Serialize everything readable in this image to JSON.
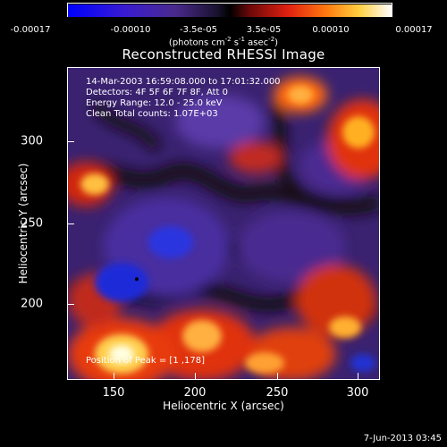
{
  "colorbar": {
    "ticks": [
      "-0.00017",
      "-0.00010",
      "-3.5e-05",
      "3.5e-05",
      "0.00010",
      "0.00017"
    ],
    "units_main": "(photons cm",
    "units_exp1": "-2",
    "units_mid": " s",
    "units_exp2": "-1",
    "units_end": " asec",
    "units_exp3": "-2",
    "units_close": ")"
  },
  "title": "Reconstructed RHESSI Image",
  "info": {
    "time": "14-Mar-2003 16:59:08.000 to 17:01:32.000",
    "detectors": "Detectors: 4F 5F 6F 7F 8F, Att 0",
    "energy": "Energy Range: 12.0 - 25.0 keV",
    "clean": "Clean    Total counts: 1.07E+03"
  },
  "peak": "Position of Peak = [",
  "peak_value": "1  ,178]",
  "timestamp": "7-Jun-2013 03:45",
  "chart_data": {
    "type": "heatmap",
    "title": "Reconstructed RHESSI Image",
    "xlabel": "Heliocentric X (arcsec)",
    "ylabel": "Heliocentric Y (arcsec)",
    "xlim": [
      120,
      310
    ],
    "ylim": [
      150,
      340
    ],
    "xticks": [
      150,
      200,
      250,
      300
    ],
    "yticks": [
      200,
      250,
      300
    ],
    "xtick_labels": [
      "150",
      "200",
      "250",
      "300"
    ],
    "ytick_labels": [
      "200",
      "250",
      "300"
    ],
    "colorbar_range": [
      -0.00017,
      0.00017
    ],
    "colormap": [
      "#0000ff",
      "#3a1cd0",
      "#4a2a8c",
      "#221a3a",
      "#2a1010",
      "#b01010",
      "#ff3a10",
      "#ffa010",
      "#ffff80",
      "#ffffff"
    ],
    "min_marker": {
      "x": 162,
      "y": 211
    }
  }
}
